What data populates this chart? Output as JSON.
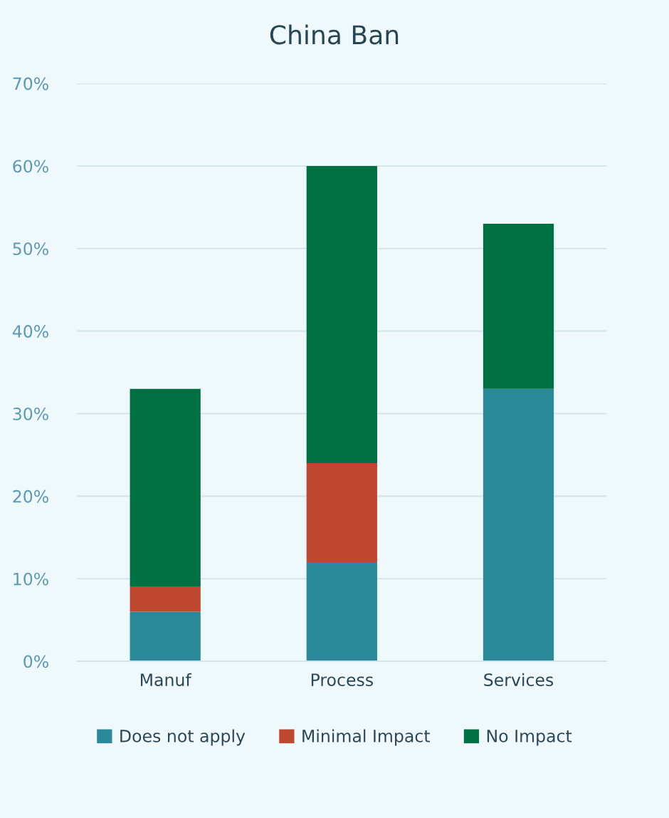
{
  "chart_data": {
    "type": "bar",
    "title": "China Ban",
    "stacked": true,
    "categories": [
      "Manuf",
      "Process",
      "Services"
    ],
    "series": [
      {
        "name": "Does not apply",
        "color": "#2a8a9a",
        "values": [
          6,
          12,
          33
        ]
      },
      {
        "name": "Minimal Impact",
        "color": "#c0472f",
        "values": [
          3,
          12,
          0
        ]
      },
      {
        "name": "No Impact",
        "color": "#006f41",
        "values": [
          24,
          36,
          20
        ]
      }
    ],
    "ylim": [
      0,
      70
    ],
    "yticks": [
      {
        "value": 0,
        "label": "0%"
      },
      {
        "value": 10,
        "label": "10%"
      },
      {
        "value": 20,
        "label": "20%"
      },
      {
        "value": 30,
        "label": "30%"
      },
      {
        "value": 40,
        "label": "40%"
      },
      {
        "value": 50,
        "label": "50%"
      },
      {
        "value": 60,
        "label": "60%"
      },
      {
        "value": 70,
        "label": "70%"
      }
    ],
    "grid": "y",
    "legend": "bottom"
  }
}
